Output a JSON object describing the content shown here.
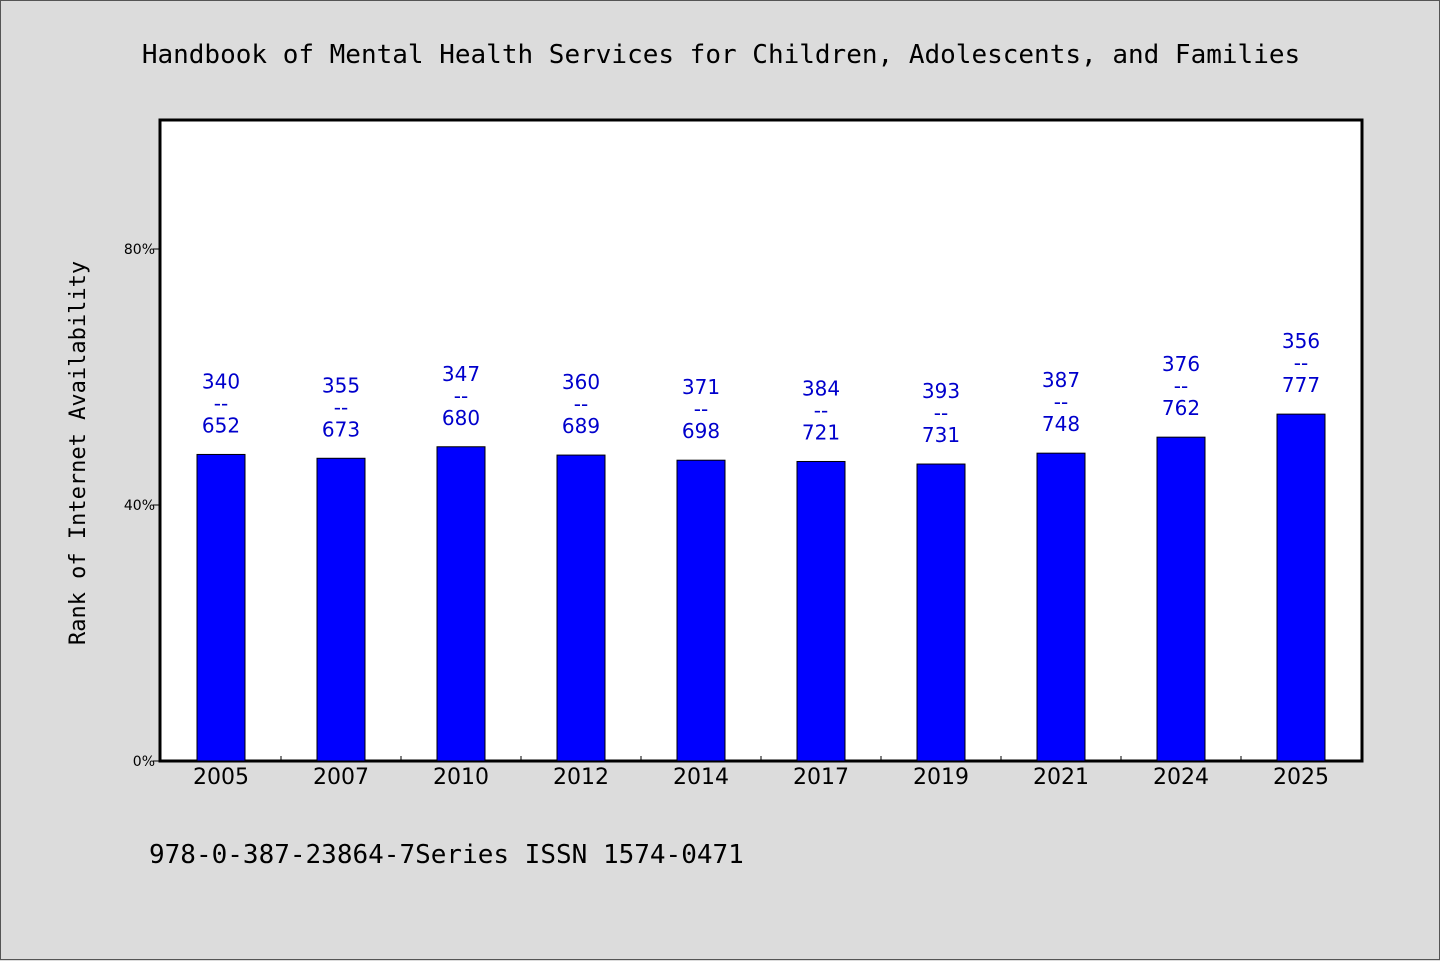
{
  "chart_data": {
    "type": "bar",
    "title": "Handbook of Mental Health Services for Children, Adolescents, and Families",
    "ylabel": "Rank of Internet Availability",
    "xlabel": "",
    "categories": [
      "2005",
      "2007",
      "2010",
      "2012",
      "2014",
      "2017",
      "2019",
      "2021",
      "2024",
      "2025"
    ],
    "values": [
      47.9,
      47.3,
      49.1,
      47.8,
      47.0,
      46.8,
      46.4,
      48.1,
      50.6,
      54.2
    ],
    "data_labels": [
      [
        "340",
        "--",
        "652"
      ],
      [
        "355",
        "--",
        "673"
      ],
      [
        "347",
        "--",
        "680"
      ],
      [
        "360",
        "--",
        "689"
      ],
      [
        "371",
        "--",
        "698"
      ],
      [
        "384",
        "--",
        "721"
      ],
      [
        "393",
        "--",
        "731"
      ],
      [
        "387",
        "--",
        "748"
      ],
      [
        "376",
        "--",
        "762"
      ],
      [
        "356",
        "--",
        "777"
      ]
    ],
    "yticks": [
      0,
      40,
      80
    ],
    "ytick_labels": [
      "0%",
      "40%",
      "80%"
    ],
    "ylim": [
      0,
      100
    ],
    "grid": false,
    "legend": "none",
    "bar_color": "#0000ff",
    "label_color": "#0000cc"
  },
  "footer": "978-0-387-23864-7Series ISSN 1574-0471"
}
